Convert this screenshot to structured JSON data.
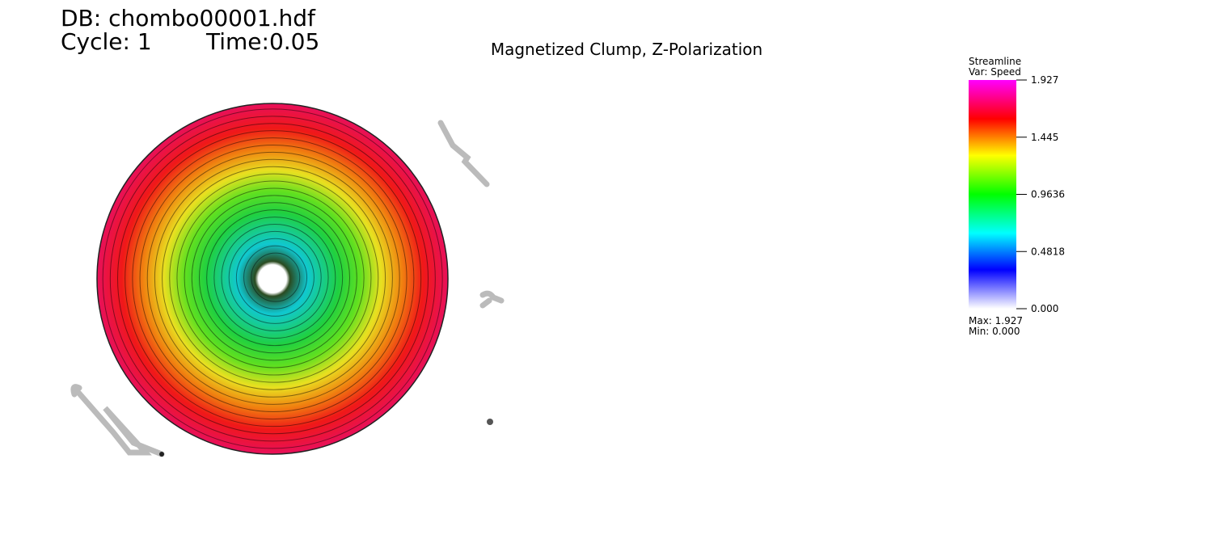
{
  "header": {
    "database": "DB: chombo00001.hdf",
    "cycle": "Cycle: 1",
    "time": "Time:0.05"
  },
  "plot": {
    "title": "Magnetized Clump, Z-Polarization"
  },
  "legend": {
    "plot_name": "Streamline",
    "variable": "Var: Speed",
    "tick_labels": [
      "1.927",
      "1.445",
      "0.9636",
      "0.4818",
      "0.000"
    ],
    "max": "Max:  1.927",
    "min": "Min:  0.000"
  }
}
